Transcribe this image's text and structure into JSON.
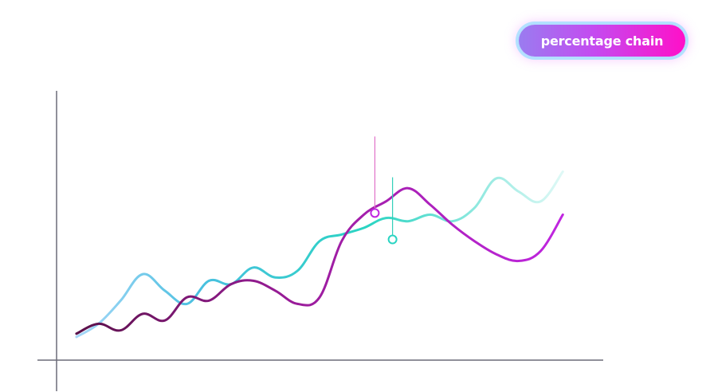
{
  "badge": {
    "label": "percentage chain"
  },
  "colors": {
    "axis": "#6b6b78",
    "teal_series": "#2ad4c2",
    "teal_series_start": "#a8d8f8",
    "purple_series": "#c026e0",
    "purple_series_start": "#5a1048",
    "marker_stem_purple": "#e070c8",
    "marker_stem_teal": "#30d0b8"
  },
  "chart_data": {
    "type": "line",
    "x": [
      0,
      1,
      2,
      3,
      4,
      5,
      6,
      7,
      8,
      9,
      10,
      11,
      12,
      13,
      14,
      15,
      16,
      17,
      18,
      19,
      20,
      21,
      22
    ],
    "series": [
      {
        "color": "#2ad4c2",
        "values": [
          7,
          11,
          18,
          26,
          21,
          17,
          24,
          23,
          28,
          25,
          27,
          36,
          38,
          40,
          43,
          42,
          44,
          42,
          46,
          55,
          51,
          48,
          57
        ]
      },
      {
        "color": "#c026e0",
        "values": [
          8,
          11,
          9,
          14,
          12,
          19,
          18,
          23,
          24,
          21,
          17,
          19,
          36,
          44,
          48,
          52,
          47,
          41,
          36,
          32,
          30,
          33,
          44
        ]
      }
    ],
    "markers": [
      {
        "series": 1,
        "x": 13.5,
        "value": 44.5
      },
      {
        "series": 0,
        "x": 14.3,
        "value": 36.5
      }
    ],
    "ylim": [
      0,
      80
    ],
    "xlim": [
      -0.5,
      23
    ],
    "grid": false,
    "legend": "none"
  }
}
